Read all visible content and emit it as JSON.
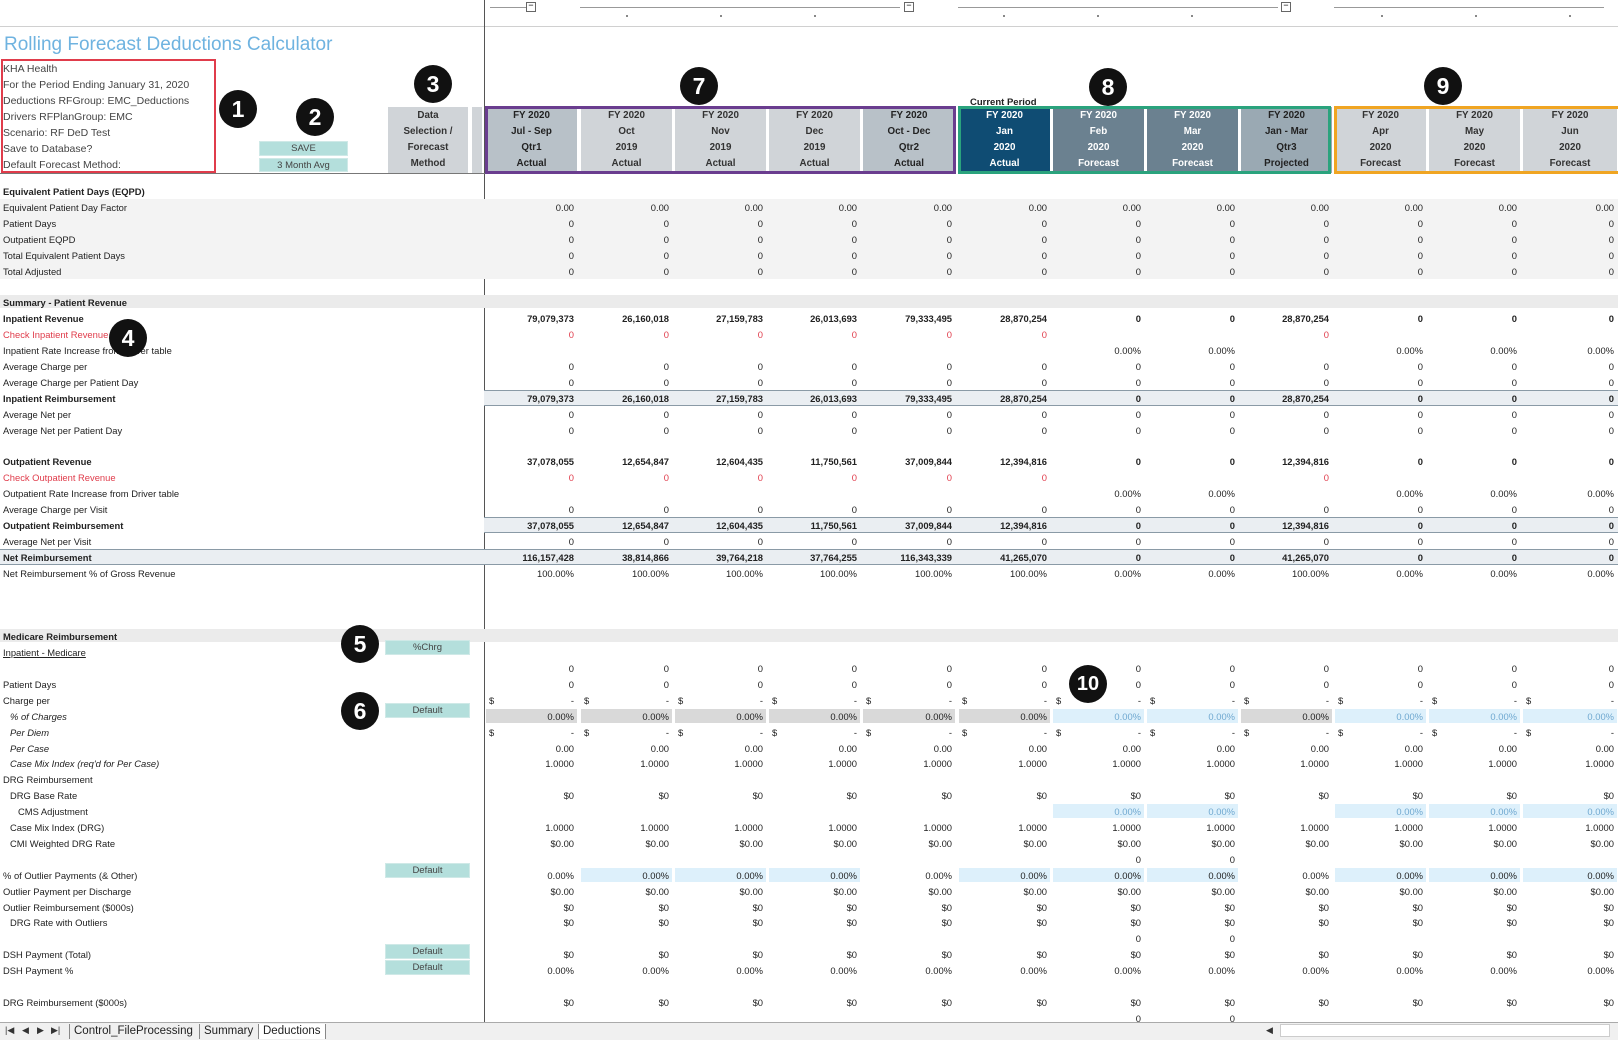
{
  "title": "Rolling Forecast Deductions Calculator",
  "info_lines": [
    "KHA Health",
    "For the Period Ending January 31, 2020",
    "Deductions RFGroup:  EMC_Deductions",
    "Drivers RFPlanGroup:  EMC",
    "Scenario:  RF DeD Test",
    "Save to Database?",
    "Default Forecast Method:"
  ],
  "save_button": "SAVE",
  "forecast_method": "3 Month Avg",
  "data_selection_header": [
    "Data",
    "Selection /",
    "Forecast",
    "Method"
  ],
  "current_period_label": "Current Period",
  "columns": [
    {
      "l1": "FY 2020",
      "l2": "Jul - Sep",
      "l3": "Qtr1",
      "l4": "Actual"
    },
    {
      "l1": "FY 2020",
      "l2": "Oct",
      "l3": "2019",
      "l4": "Actual"
    },
    {
      "l1": "FY 2020",
      "l2": "Nov",
      "l3": "2019",
      "l4": "Actual"
    },
    {
      "l1": "FY 2020",
      "l2": "Dec",
      "l3": "2019",
      "l4": "Actual"
    },
    {
      "l1": "FY 2020",
      "l2": "Oct - Dec",
      "l3": "Qtr2",
      "l4": "Actual"
    },
    {
      "l1": "FY 2020",
      "l2": "Jan",
      "l3": "2020",
      "l4": "Actual"
    },
    {
      "l1": "FY 2020",
      "l2": "Feb",
      "l3": "2020",
      "l4": "Forecast"
    },
    {
      "l1": "FY 2020",
      "l2": "Mar",
      "l3": "2020",
      "l4": "Forecast"
    },
    {
      "l1": "FY 2020",
      "l2": "Jan - Mar",
      "l3": "Qtr3",
      "l4": "Projected"
    },
    {
      "l1": "FY 2020",
      "l2": "Apr",
      "l3": "2020",
      "l4": "Forecast"
    },
    {
      "l1": "FY 2020",
      "l2": "May",
      "l3": "2020",
      "l4": "Forecast"
    },
    {
      "l1": "FY 2020",
      "l2": "Jun",
      "l3": "2020",
      "l4": "Forecast"
    }
  ],
  "callouts": [
    "1",
    "2",
    "3",
    "4",
    "5",
    "6",
    "7",
    "8",
    "9",
    "10"
  ],
  "buttons": {
    "pct_chrg": "%Chrg",
    "default": "Default"
  },
  "rows": [
    {
      "label": "Equivalent Patient Days (EQPD)",
      "style": "b",
      "values": []
    },
    {
      "label": "Equivalent Patient Day Factor",
      "values": [
        "0.00",
        "0.00",
        "0.00",
        "0.00",
        "0.00",
        "0.00",
        "0.00",
        "0.00",
        "0.00",
        "0.00",
        "0.00",
        "0.00"
      ]
    },
    {
      "label": "Patient Days",
      "values": [
        "0",
        "0",
        "0",
        "0",
        "0",
        "0",
        "0",
        "0",
        "0",
        "0",
        "0",
        "0"
      ]
    },
    {
      "label": "Outpatient EQPD",
      "values": [
        "0",
        "0",
        "0",
        "0",
        "0",
        "0",
        "0",
        "0",
        "0",
        "0",
        "0",
        "0"
      ]
    },
    {
      "label": "Total Equivalent Patient Days",
      "values": [
        "0",
        "0",
        "0",
        "0",
        "0",
        "0",
        "0",
        "0",
        "0",
        "0",
        "0",
        "0"
      ]
    },
    {
      "label": "Total Adjusted",
      "values": [
        "0",
        "0",
        "0",
        "0",
        "0",
        "0",
        "0",
        "0",
        "0",
        "0",
        "0",
        "0"
      ]
    },
    {
      "label": "",
      "values": []
    },
    {
      "label": "Summary - Patient Revenue",
      "style": "b",
      "values": []
    },
    {
      "label": "Inpatient Revenue",
      "style": "b",
      "values": [
        "79,079,373",
        "26,160,018",
        "27,159,783",
        "26,013,693",
        "79,333,495",
        "28,870,254",
        "0",
        "0",
        "28,870,254",
        "0",
        "0",
        "0"
      ]
    },
    {
      "label": "Check Inpatient Revenue",
      "style": "red",
      "values": [
        "0",
        "0",
        "0",
        "0",
        "0",
        "0",
        "",
        "",
        "0",
        "",
        "",
        ""
      ]
    },
    {
      "label": "Inpatient Rate Increase from Driver table",
      "values": [
        "",
        "",
        "",
        "",
        "",
        "",
        "0.00%",
        "0.00%",
        "",
        "0.00%",
        "0.00%",
        "0.00%"
      ]
    },
    {
      "label": "Average Charge per",
      "values": [
        "0",
        "0",
        "0",
        "0",
        "0",
        "0",
        "0",
        "0",
        "0",
        "0",
        "0",
        "0"
      ]
    },
    {
      "label": "Average Charge per Patient Day",
      "values": [
        "0",
        "0",
        "0",
        "0",
        "0",
        "0",
        "0",
        "0",
        "0",
        "0",
        "0",
        "0"
      ]
    },
    {
      "label": "Inpatient Reimbursement",
      "style": "b",
      "values": [
        "79,079,373",
        "26,160,018",
        "27,159,783",
        "26,013,693",
        "79,333,495",
        "28,870,254",
        "0",
        "0",
        "28,870,254",
        "0",
        "0",
        "0"
      ]
    },
    {
      "label": "Average Net per",
      "values": [
        "0",
        "0",
        "0",
        "0",
        "0",
        "0",
        "0",
        "0",
        "0",
        "0",
        "0",
        "0"
      ]
    },
    {
      "label": "Average Net per Patient Day",
      "values": [
        "0",
        "0",
        "0",
        "0",
        "0",
        "0",
        "0",
        "0",
        "0",
        "0",
        "0",
        "0"
      ]
    },
    {
      "label": "",
      "values": []
    },
    {
      "label": "Outpatient Revenue",
      "style": "b",
      "values": [
        "37,078,055",
        "12,654,847",
        "12,604,435",
        "11,750,561",
        "37,009,844",
        "12,394,816",
        "0",
        "0",
        "12,394,816",
        "0",
        "0",
        "0"
      ]
    },
    {
      "label": "Check Outpatient Revenue",
      "style": "red",
      "values": [
        "0",
        "0",
        "0",
        "0",
        "0",
        "0",
        "",
        "",
        "0",
        "",
        "",
        ""
      ]
    },
    {
      "label": "Outpatient Rate Increase from Driver table",
      "values": [
        "",
        "",
        "",
        "",
        "",
        "",
        "0.00%",
        "0.00%",
        "",
        "0.00%",
        "0.00%",
        "0.00%"
      ]
    },
    {
      "label": "Average Charge per Visit",
      "values": [
        "0",
        "0",
        "0",
        "0",
        "0",
        "0",
        "0",
        "0",
        "0",
        "0",
        "0",
        "0"
      ]
    },
    {
      "label": "Outpatient Reimbursement",
      "style": "b",
      "values": [
        "37,078,055",
        "12,654,847",
        "12,604,435",
        "11,750,561",
        "37,009,844",
        "12,394,816",
        "0",
        "0",
        "12,394,816",
        "0",
        "0",
        "0"
      ]
    },
    {
      "label": "Average Net per Visit",
      "values": [
        "0",
        "0",
        "0",
        "0",
        "0",
        "0",
        "0",
        "0",
        "0",
        "0",
        "0",
        "0"
      ]
    },
    {
      "label": "Net Reimbursement",
      "style": "b",
      "values": [
        "116,157,428",
        "38,814,866",
        "39,764,218",
        "37,764,255",
        "116,343,339",
        "41,265,070",
        "0",
        "0",
        "41,265,070",
        "0",
        "0",
        "0"
      ]
    },
    {
      "label": "Net Reimbursement % of Gross Revenue",
      "values": [
        "100.00%",
        "100.00%",
        "100.00%",
        "100.00%",
        "100.00%",
        "100.00%",
        "0.00%",
        "0.00%",
        "100.00%",
        "0.00%",
        "0.00%",
        "0.00%"
      ]
    },
    {
      "label": "",
      "values": []
    },
    {
      "label": "",
      "values": []
    },
    {
      "label": "",
      "values": []
    },
    {
      "label": "Medicare Reimbursement",
      "style": "b",
      "values": []
    },
    {
      "label": "Inpatient - Medicare",
      "style": "u",
      "values": []
    },
    {
      "label": "",
      "values": [
        "0",
        "0",
        "0",
        "0",
        "0",
        "0",
        "0",
        "0",
        "0",
        "0",
        "0",
        "0"
      ]
    },
    {
      "label": "Patient Days",
      "values": [
        "0",
        "0",
        "0",
        "0",
        "0",
        "0",
        "0",
        "0",
        "0",
        "0",
        "0",
        "0"
      ]
    },
    {
      "label": "Charge per",
      "values": [
        "-",
        "-",
        "-",
        "-",
        "-",
        "-",
        "-",
        "-",
        "-",
        "-",
        "-",
        "-"
      ],
      "dollar": true
    },
    {
      "label": "% of Charges",
      "style": "i ind",
      "values": [
        "0.00%",
        "0.00%",
        "0.00%",
        "0.00%",
        "0.00%",
        "0.00%",
        "0.00%",
        "0.00%",
        "0.00%",
        "0.00%",
        "0.00%",
        "0.00%"
      ],
      "shade": true
    },
    {
      "label": "Per Diem",
      "style": "i ind",
      "values": [
        "-",
        "-",
        "-",
        "-",
        "-",
        "-",
        "-",
        "-",
        "-",
        "-",
        "-",
        "-"
      ],
      "dollar": true
    },
    {
      "label": "Per Case",
      "style": "i ind",
      "values": [
        "0.00",
        "0.00",
        "0.00",
        "0.00",
        "0.00",
        "0.00",
        "0.00",
        "0.00",
        "0.00",
        "0.00",
        "0.00",
        "0.00"
      ]
    },
    {
      "label": "Case Mix Index (req'd for Per Case)",
      "style": "i ind",
      "values": [
        "1.0000",
        "1.0000",
        "1.0000",
        "1.0000",
        "1.0000",
        "1.0000",
        "1.0000",
        "1.0000",
        "1.0000",
        "1.0000",
        "1.0000",
        "1.0000"
      ]
    },
    {
      "label": "DRG Reimbursement",
      "values": []
    },
    {
      "label": "DRG Base Rate",
      "style": "ind",
      "values": [
        "$0",
        "$0",
        "$0",
        "$0",
        "$0",
        "$0",
        "$0",
        "$0",
        "$0",
        "$0",
        "$0",
        "$0"
      ]
    },
    {
      "label": "CMS Adjustment",
      "style": "ind2",
      "values": [
        "",
        "",
        "",
        "",
        "",
        "",
        "0.00%",
        "0.00%",
        "",
        "0.00%",
        "0.00%",
        "0.00%"
      ],
      "blue_forecast": true
    },
    {
      "label": "Case Mix Index (DRG)",
      "style": "ind",
      "values": [
        "1.0000",
        "1.0000",
        "1.0000",
        "1.0000",
        "1.0000",
        "1.0000",
        "1.0000",
        "1.0000",
        "1.0000",
        "1.0000",
        "1.0000",
        "1.0000"
      ]
    },
    {
      "label": "CMI Weighted DRG Rate",
      "style": "ind",
      "values": [
        "$0.00",
        "$0.00",
        "$0.00",
        "$0.00",
        "$0.00",
        "$0.00",
        "$0.00",
        "$0.00",
        "$0.00",
        "$0.00",
        "$0.00",
        "$0.00"
      ]
    },
    {
      "label": "",
      "values": [
        "",
        "",
        "",
        "",
        "",
        "",
        "0",
        "0",
        "",
        "",
        "",
        ""
      ]
    },
    {
      "label": "% of Outlier Payments (& Other)",
      "values": [
        "0.00%",
        "0.00%",
        "0.00%",
        "0.00%",
        "0.00%",
        "0.00%",
        "0.00%",
        "0.00%",
        "0.00%",
        "0.00%",
        "0.00%",
        "0.00%"
      ],
      "blue_mixed": true
    },
    {
      "label": "Outlier Payment per Discharge",
      "values": [
        "$0.00",
        "$0.00",
        "$0.00",
        "$0.00",
        "$0.00",
        "$0.00",
        "$0.00",
        "$0.00",
        "$0.00",
        "$0.00",
        "$0.00",
        "$0.00"
      ]
    },
    {
      "label": "Outlier Reimbursement ($000s)",
      "values": [
        "$0",
        "$0",
        "$0",
        "$0",
        "$0",
        "$0",
        "$0",
        "$0",
        "$0",
        "$0",
        "$0",
        "$0"
      ]
    },
    {
      "label": "DRG Rate with Outliers",
      "style": "ind",
      "values": [
        "$0",
        "$0",
        "$0",
        "$0",
        "$0",
        "$0",
        "$0",
        "$0",
        "$0",
        "$0",
        "$0",
        "$0"
      ]
    },
    {
      "label": "",
      "values": [
        "",
        "",
        "",
        "",
        "",
        "",
        "0",
        "0",
        "",
        "",
        "",
        ""
      ]
    },
    {
      "label": "DSH Payment (Total)",
      "values": [
        "$0",
        "$0",
        "$0",
        "$0",
        "$0",
        "$0",
        "$0",
        "$0",
        "$0",
        "$0",
        "$0",
        "$0"
      ]
    },
    {
      "label": "DSH Payment %",
      "values": [
        "0.00%",
        "0.00%",
        "0.00%",
        "0.00%",
        "0.00%",
        "0.00%",
        "0.00%",
        "0.00%",
        "0.00%",
        "0.00%",
        "0.00%",
        "0.00%"
      ]
    },
    {
      "label": "",
      "values": []
    },
    {
      "label": "DRG Reimbursement ($000s)",
      "values": [
        "$0",
        "$0",
        "$0",
        "$0",
        "$0",
        "$0",
        "$0",
        "$0",
        "$0",
        "$0",
        "$0",
        "$0"
      ]
    },
    {
      "label": "",
      "values": [
        "",
        "",
        "",
        "",
        "",
        "",
        "0",
        "0",
        "",
        "",
        "",
        ""
      ]
    }
  ],
  "tabs": [
    "Control_FileProcessing",
    "Summary",
    "Deductions"
  ],
  "colors": {
    "title": "#6fb3e0",
    "red_box": "#e03c4b",
    "purple_box": "#6a3d8f",
    "teal_box": "#2aa37d",
    "orange_box": "#f0a522",
    "navy_header": "#0f4c73"
  }
}
